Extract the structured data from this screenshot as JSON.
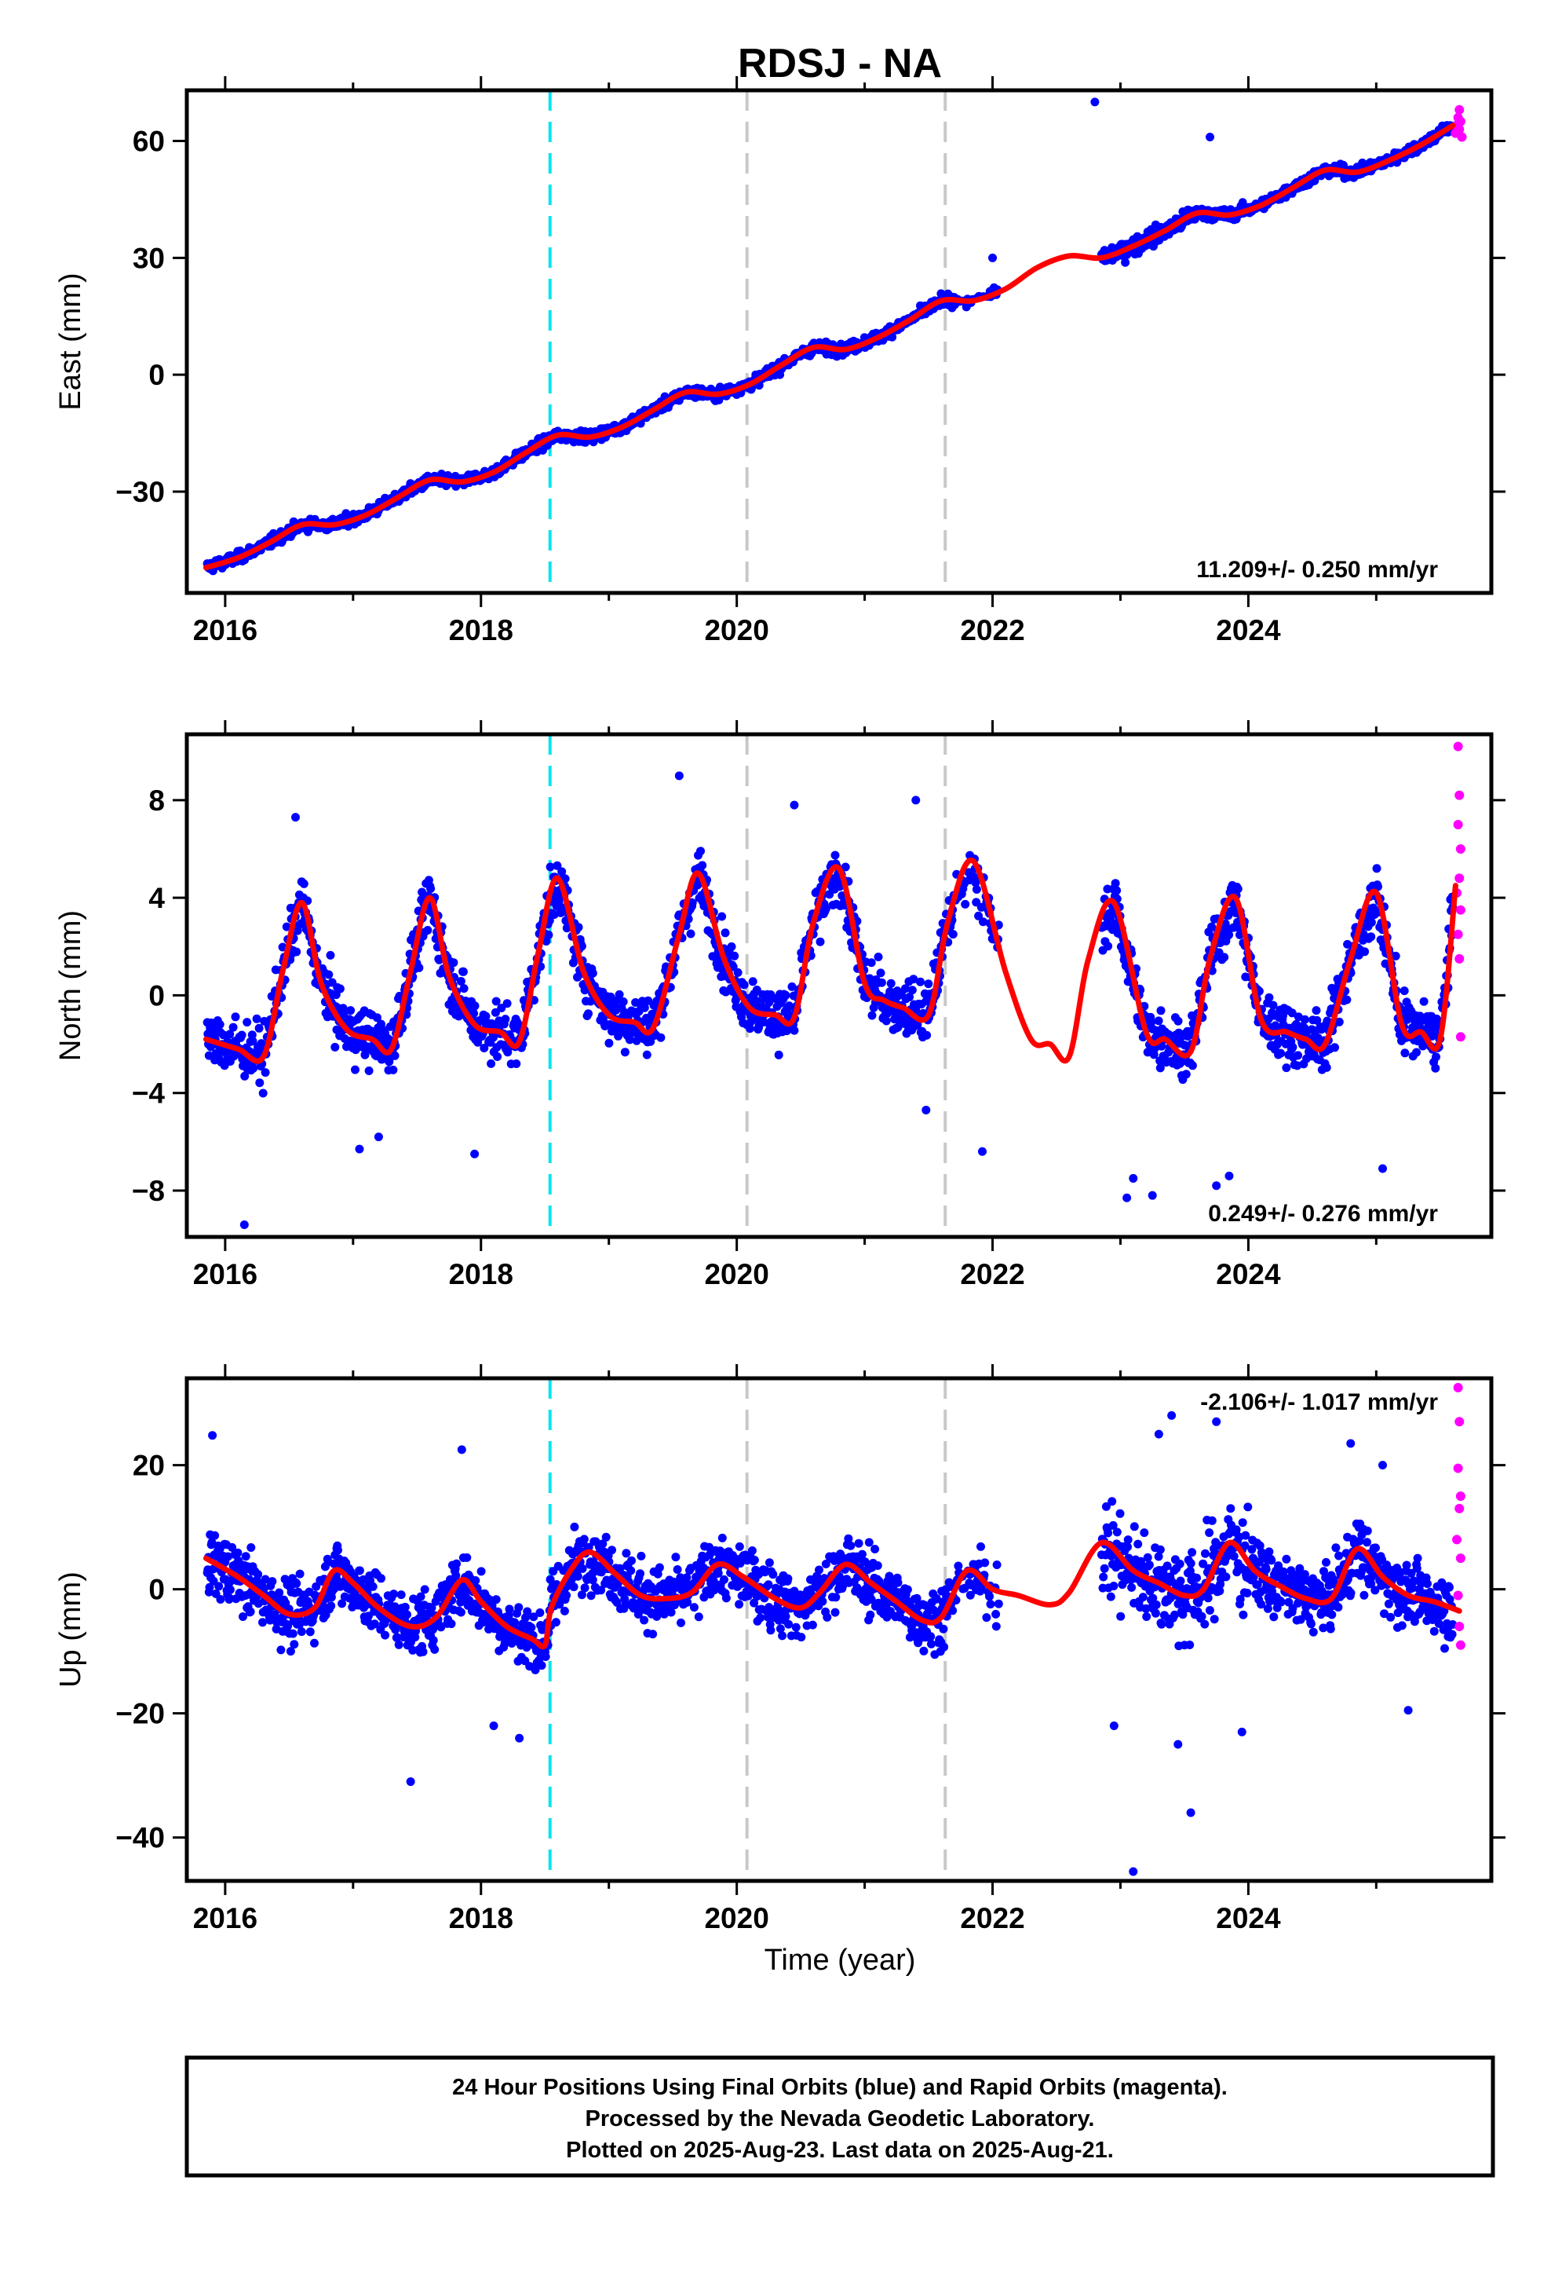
{
  "chart_data": {
    "type": "scatter",
    "title": "RDSJ - NA",
    "xlabel": "Time (year)",
    "xlim": [
      2015.7,
      2025.9
    ],
    "x_ticks": [
      2016,
      2018,
      2020,
      2022,
      2024
    ],
    "x_tick_labels": [
      "2016",
      "2018",
      "2020",
      "2022",
      "2024"
    ],
    "vertical_lines": [
      {
        "x": 2018.54,
        "color": "#00e5ee",
        "style": "dashed"
      },
      {
        "x": 2020.08,
        "color": "#c8c8c8",
        "style": "dashed"
      },
      {
        "x": 2021.63,
        "color": "#c8c8c8",
        "style": "dashed"
      }
    ],
    "colors": {
      "final_orbits": "#0000ff",
      "rapid_orbits": "#ff00ff",
      "model": "#ff0000"
    },
    "gap": [
      2022.05,
      2022.85
    ],
    "panels": [
      {
        "name": "east",
        "ylabel": "East (mm)",
        "ylim": [
          -56,
          73
        ],
        "y_ticks": [
          -30,
          0,
          30,
          60
        ],
        "y_tick_labels": [
          "−30",
          "0",
          "30",
          "60"
        ],
        "rate_text": "11.209+/- 0.250 mm/yr",
        "trend": {
          "t0": 2015.85,
          "y0": -50,
          "slope": 11.209
        },
        "model_line": {
          "x": [
            2015.85,
            2016.1,
            2016.35,
            2016.6,
            2016.85,
            2017.1,
            2017.35,
            2017.6,
            2017.85,
            2018.1,
            2018.35,
            2018.6,
            2018.85,
            2019.1,
            2019.35,
            2019.6,
            2019.85,
            2020.1,
            2020.35,
            2020.6,
            2020.85,
            2021.1,
            2021.35,
            2021.6,
            2021.85,
            2022.1,
            2022.35,
            2022.6,
            2022.85,
            2023.1,
            2023.35,
            2023.6,
            2023.85,
            2024.1,
            2024.35,
            2024.6,
            2024.85,
            2025.1,
            2025.35,
            2025.6
          ],
          "y": [
            -49.5,
            -47,
            -43,
            -38.5,
            -38.5,
            -36,
            -31.5,
            -27,
            -27.5,
            -25,
            -20,
            -15.5,
            -16,
            -13.5,
            -9,
            -4.5,
            -5,
            -2.5,
            2.5,
            7,
            6.5,
            9.5,
            14,
            19,
            19,
            22,
            27.5,
            30.5,
            30,
            33,
            37,
            41.5,
            41,
            43.5,
            48,
            52.5,
            52,
            55,
            59,
            64
          ]
        },
        "rapid": [
          {
            "x": 2025.62,
            "y": 62
          },
          {
            "x": 2025.63,
            "y": 64
          },
          {
            "x": 2025.64,
            "y": 66
          },
          {
            "x": 2025.65,
            "y": 68
          },
          {
            "x": 2025.66,
            "y": 65
          },
          {
            "x": 2025.67,
            "y": 61
          },
          {
            "x": 2025.65,
            "y": 63
          }
        ]
      },
      {
        "name": "north",
        "ylabel": "North (mm)",
        "ylim": [
          -9.9,
          10.7
        ],
        "y_ticks": [
          -8,
          -4,
          0,
          4,
          8
        ],
        "y_tick_labels": [
          "−8",
          "−4",
          "0",
          "4",
          "8"
        ],
        "rate_text": "0.249+/- 0.276 mm/yr",
        "model_line": {
          "x": [
            2015.85,
            2016.1,
            2016.3,
            2016.45,
            2016.6,
            2016.75,
            2016.95,
            2017.15,
            2017.3,
            2017.45,
            2017.6,
            2017.75,
            2017.95,
            2018.15,
            2018.3,
            2018.45,
            2018.6,
            2018.8,
            2019.0,
            2019.2,
            2019.35,
            2019.55,
            2019.7,
            2019.9,
            2020.1,
            2020.3,
            2020.45,
            2020.6,
            2020.8,
            2021.0,
            2021.15,
            2021.3,
            2021.5,
            2021.65,
            2021.85,
            2022.1,
            2022.3,
            2022.45,
            2022.6,
            2022.75,
            2022.95,
            2023.2,
            2023.35,
            2023.55,
            2023.7,
            2023.9,
            2024.1,
            2024.3,
            2024.45,
            2024.6,
            2024.8,
            2025.0,
            2025.2,
            2025.35,
            2025.5,
            2025.62
          ],
          "y": [
            -1.8,
            -2.2,
            -2.5,
            1.0,
            3.8,
            0.5,
            -1.4,
            -1.8,
            -2.2,
            1.0,
            4.0,
            0.8,
            -1.2,
            -1.5,
            -1.9,
            1.8,
            4.8,
            1.0,
            -0.8,
            -1.1,
            -1.3,
            2.5,
            5.0,
            1.5,
            -0.5,
            -0.8,
            -0.9,
            3.0,
            5.2,
            0.5,
            -0.2,
            -0.5,
            -0.8,
            3.0,
            5.5,
            1.0,
            -1.8,
            -2.0,
            -2.5,
            1.5,
            3.8,
            -1.5,
            -1.8,
            -2.3,
            1.5,
            4.0,
            -1.0,
            -1.5,
            -1.8,
            -2.0,
            1.5,
            4.2,
            -1.2,
            -1.5,
            -1.8,
            4.5
          ]
        },
        "rapid": [
          {
            "x": 2025.64,
            "y": 10.2
          },
          {
            "x": 2025.65,
            "y": 8.2
          },
          {
            "x": 2025.64,
            "y": 7.0
          },
          {
            "x": 2025.66,
            "y": 6.0
          },
          {
            "x": 2025.65,
            "y": 4.8
          },
          {
            "x": 2025.63,
            "y": 4.2
          },
          {
            "x": 2025.66,
            "y": 3.5
          },
          {
            "x": 2025.64,
            "y": 2.5
          },
          {
            "x": 2025.65,
            "y": 1.5
          },
          {
            "x": 2025.66,
            "y": -1.7
          }
        ]
      },
      {
        "name": "up",
        "ylabel": "Up (mm)",
        "ylim": [
          -47,
          34
        ],
        "y_ticks": [
          -40,
          -20,
          0,
          20
        ],
        "y_tick_labels": [
          "−40",
          "−20",
          "0",
          "20"
        ],
        "rate_text": "-2.106+/- 1.017 mm/yr",
        "model_line": {
          "x": [
            2015.85,
            2016.1,
            2016.3,
            2016.5,
            2016.7,
            2016.85,
            2017.0,
            2017.2,
            2017.45,
            2017.65,
            2017.85,
            2018.0,
            2018.2,
            2018.4,
            2018.5,
            2018.55,
            2018.7,
            2018.85,
            2019.05,
            2019.25,
            2019.45,
            2019.65,
            2019.85,
            2020.05,
            2020.3,
            2020.5,
            2020.65,
            2020.85,
            2021.05,
            2021.25,
            2021.45,
            2021.6,
            2021.8,
            2022.0,
            2022.2,
            2022.45,
            2022.6,
            2022.85,
            2023.1,
            2023.3,
            2023.5,
            2023.65,
            2023.85,
            2024.05,
            2024.25,
            2024.45,
            2024.65,
            2024.85,
            2025.05,
            2025.25,
            2025.45,
            2025.65
          ],
          "y": [
            5.0,
            2.0,
            -1.0,
            -4.0,
            -3.0,
            3.0,
            1.0,
            -3.0,
            -6.0,
            -4.5,
            1.5,
            -2.0,
            -6.0,
            -8.0,
            -9.0,
            -3.0,
            3.0,
            6.0,
            2.5,
            -1.0,
            -1.5,
            -0.5,
            4.0,
            2.0,
            -1.5,
            -3.0,
            -0.5,
            4.0,
            1.0,
            -2.0,
            -5.0,
            -4.5,
            3.0,
            0.0,
            -1.0,
            -2.5,
            -0.5,
            7.5,
            3.0,
            1.0,
            -1.0,
            0.0,
            7.5,
            3.0,
            0.5,
            -1.5,
            -1.5,
            6.5,
            2.0,
            -1.0,
            -2.0,
            -3.5
          ]
        },
        "rapid": [
          {
            "x": 2025.64,
            "y": 32.5
          },
          {
            "x": 2025.65,
            "y": 27
          },
          {
            "x": 2025.64,
            "y": 19.5
          },
          {
            "x": 2025.66,
            "y": 15
          },
          {
            "x": 2025.65,
            "y": 13
          },
          {
            "x": 2025.63,
            "y": 8
          },
          {
            "x": 2025.66,
            "y": 5
          },
          {
            "x": 2025.64,
            "y": -1
          },
          {
            "x": 2025.65,
            "y": -6
          },
          {
            "x": 2025.66,
            "y": -9
          }
        ]
      }
    ],
    "outliers": [
      {
        "panel": "north",
        "x": 2016.15,
        "y": -9.4
      },
      {
        "panel": "north",
        "x": 2017.05,
        "y": -6.3
      },
      {
        "panel": "north",
        "x": 2017.2,
        "y": -5.8
      },
      {
        "panel": "north",
        "x": 2017.95,
        "y": -6.5
      },
      {
        "panel": "north",
        "x": 2019.55,
        "y": 9.0
      },
      {
        "panel": "north",
        "x": 2021.48,
        "y": -4.7
      },
      {
        "panel": "north",
        "x": 2021.92,
        "y": -6.4
      },
      {
        "panel": "north",
        "x": 2023.05,
        "y": -8.3
      },
      {
        "panel": "north",
        "x": 2023.25,
        "y": -8.2
      },
      {
        "panel": "north",
        "x": 2023.1,
        "y": -7.5
      },
      {
        "panel": "north",
        "x": 2023.75,
        "y": -7.8
      },
      {
        "panel": "north",
        "x": 2023.85,
        "y": -7.4
      },
      {
        "panel": "north",
        "x": 2025.05,
        "y": -7.1
      },
      {
        "panel": "north",
        "x": 2020.45,
        "y": 7.8
      },
      {
        "panel": "north",
        "x": 2021.4,
        "y": 8.0
      },
      {
        "panel": "north",
        "x": 2016.55,
        "y": 7.3
      },
      {
        "panel": "east",
        "x": 2022.8,
        "y": 70
      },
      {
        "panel": "east",
        "x": 2023.7,
        "y": 61
      },
      {
        "panel": "east",
        "x": 2022.0,
        "y": 30
      },
      {
        "panel": "up",
        "x": 2015.9,
        "y": 24.8
      },
      {
        "panel": "up",
        "x": 2017.45,
        "y": -31
      },
      {
        "panel": "up",
        "x": 2017.85,
        "y": 22.5
      },
      {
        "panel": "up",
        "x": 2018.1,
        "y": -22
      },
      {
        "panel": "up",
        "x": 2018.3,
        "y": -24
      },
      {
        "panel": "up",
        "x": 2023.1,
        "y": -45.5
      },
      {
        "panel": "up",
        "x": 2023.55,
        "y": -36
      },
      {
        "panel": "up",
        "x": 2023.4,
        "y": 28
      },
      {
        "panel": "up",
        "x": 2023.3,
        "y": 25
      },
      {
        "panel": "up",
        "x": 2023.75,
        "y": 27
      },
      {
        "panel": "up",
        "x": 2023.45,
        "y": -25
      },
      {
        "panel": "up",
        "x": 2023.95,
        "y": -23
      },
      {
        "panel": "up",
        "x": 2024.8,
        "y": 23.5
      },
      {
        "panel": "up",
        "x": 2025.25,
        "y": -19.5
      },
      {
        "panel": "up",
        "x": 2025.05,
        "y": 20
      },
      {
        "panel": "up",
        "x": 2022.95,
        "y": -22
      }
    ]
  },
  "caption": {
    "lines": [
      "24 Hour Positions Using Final Orbits (blue) and Rapid Orbits (magenta).",
      "Processed by the Nevada Geodetic Laboratory.",
      "Plotted on 2025-Aug-23. Last data on 2025-Aug-21."
    ]
  }
}
